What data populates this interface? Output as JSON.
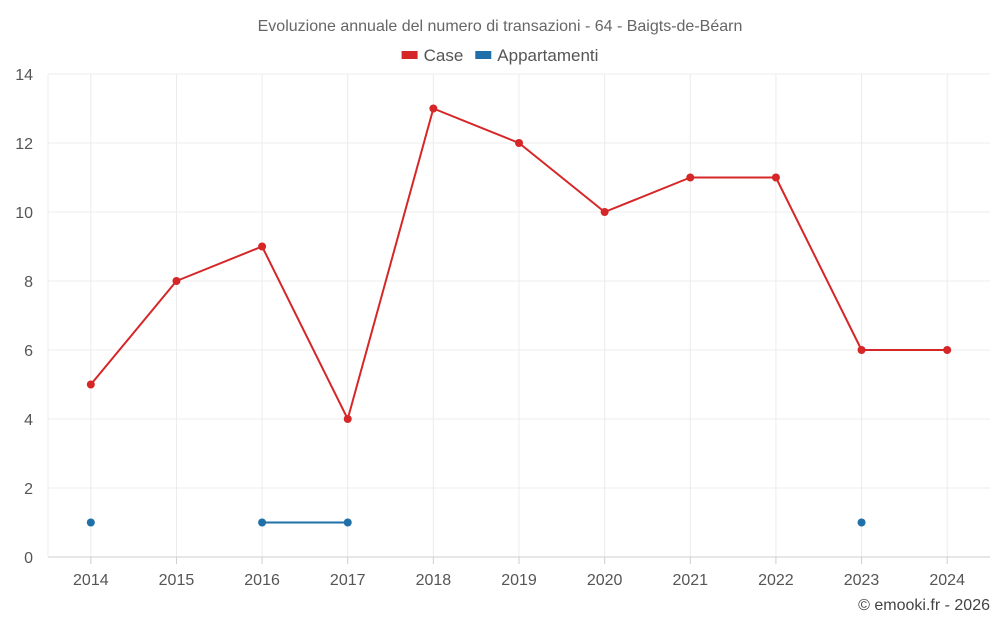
{
  "chart_data": {
    "type": "line",
    "title": "Evoluzione annuale del numero di transazioni - 64 - Baigts-de-Béarn",
    "categories": [
      "2014",
      "2015",
      "2016",
      "2017",
      "2018",
      "2019",
      "2020",
      "2021",
      "2022",
      "2023",
      "2024"
    ],
    "series": [
      {
        "name": "Case",
        "color": "#d62728",
        "values": [
          5,
          8,
          9,
          4,
          13,
          12,
          10,
          11,
          11,
          6,
          6
        ]
      },
      {
        "name": "Appartamenti",
        "color": "#1f6fa8",
        "values": [
          1,
          null,
          1,
          1,
          null,
          null,
          null,
          null,
          null,
          1,
          null
        ]
      }
    ],
    "ylim": [
      0,
      14
    ],
    "yticks": [
      0,
      2,
      4,
      6,
      8,
      10,
      12,
      14
    ],
    "grid": true,
    "legend": "top-center"
  },
  "credit": "© emooki.fr - 2026"
}
